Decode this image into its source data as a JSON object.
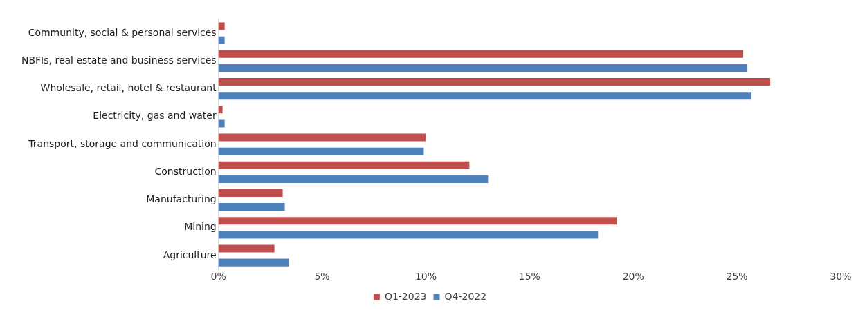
{
  "chart_data": {
    "type": "bar",
    "orientation": "horizontal",
    "categories": [
      "Community, social & personal services",
      "NBFIs, real estate and business services",
      "Wholesale, retail, hotel & restaurant",
      "Electricity, gas and water",
      "Transport, storage and communication",
      "Construction",
      "Manufacturing",
      "Mining",
      "Agriculture"
    ],
    "series": [
      {
        "name": "Q1-2023",
        "color": "#c0504d",
        "values": [
          0.3,
          25.3,
          26.6,
          0.2,
          10.0,
          12.1,
          3.1,
          19.2,
          2.7
        ]
      },
      {
        "name": "Q4-2022",
        "color": "#4f81bd",
        "values": [
          0.3,
          25.5,
          25.7,
          0.3,
          9.9,
          13.0,
          3.2,
          18.3,
          3.4
        ]
      }
    ],
    "xlim": [
      0,
      30
    ],
    "xticks": [
      {
        "value": 0,
        "label": "0%"
      },
      {
        "value": 5,
        "label": "5%"
      },
      {
        "value": 10,
        "label": "10%"
      },
      {
        "value": 15,
        "label": "15%"
      },
      {
        "value": 20,
        "label": "20%"
      },
      {
        "value": 25,
        "label": "25%"
      },
      {
        "value": 30,
        "label": "30%"
      }
    ],
    "grid": false,
    "legend": "bottom"
  }
}
